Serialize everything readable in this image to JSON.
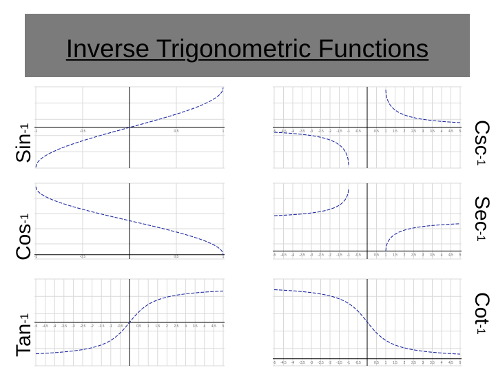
{
  "title": "Inverse Trigonometric Functions",
  "labels": {
    "sin": {
      "base": "Sin",
      "sup": "-1"
    },
    "cos": {
      "base": "Cos",
      "sup": "-1"
    },
    "tan": {
      "base": "Tan",
      "sup": "-1"
    },
    "csc": {
      "base": "Csc",
      "sup": "-1"
    },
    "sec": {
      "base": "Sec",
      "sup": "-1"
    },
    "cot": {
      "base": "Cot",
      "sup": "-1"
    }
  },
  "colors": {
    "title_bar": "#7b7b7b",
    "curve": "#1f2aa0",
    "grid": "#d9d9d9",
    "axis": "#000000",
    "tick": "#666666"
  },
  "chart_data": [
    {
      "id": "sin",
      "type": "line",
      "function": "arcsin",
      "xlim": [
        -1,
        1
      ],
      "ylim": [
        -1.6,
        1.6
      ],
      "tick_labels": [
        "-1",
        "-0.5",
        "0",
        "0.5",
        "1"
      ]
    },
    {
      "id": "cos",
      "type": "line",
      "function": "arccos",
      "xlim": [
        -1,
        1
      ],
      "ylim": [
        -0.2,
        3.3
      ],
      "tick_labels": [
        "-1",
        "-0.5",
        "0",
        "0.5",
        "1"
      ]
    },
    {
      "id": "tan",
      "type": "line",
      "function": "arctan",
      "xlim": [
        -5,
        5
      ],
      "ylim": [
        -1.9,
        1.9
      ],
      "tick_labels": [
        "-5",
        "-4.5",
        "-4",
        "-3.5",
        "-3",
        "-2.5",
        "-2",
        "-1.5",
        "-1",
        "-0.5",
        "0",
        "0.5",
        "1",
        "1.5",
        "2",
        "2.5",
        "3",
        "3.5",
        "4",
        "4.5",
        "5"
      ]
    },
    {
      "id": "csc",
      "type": "line",
      "function": "arccsc",
      "xlim": [
        -5,
        5
      ],
      "ylim": [
        -1.7,
        1.7
      ],
      "tick_labels": [
        "-5",
        "-4.5",
        "-4",
        "-3.5",
        "-3",
        "-2.5",
        "-2",
        "-1.5",
        "-1",
        "-0.5",
        "0",
        "0.5",
        "1",
        "1.5",
        "2",
        "2.5",
        "3",
        "3.5",
        "4",
        "4.5",
        "5"
      ]
    },
    {
      "id": "sec",
      "type": "line",
      "function": "arcsec",
      "xlim": [
        -5,
        5
      ],
      "ylim": [
        -0.4,
        3.4
      ],
      "tick_labels": [
        "-5",
        "-4.5",
        "-4",
        "-3.5",
        "-3",
        "-2.5",
        "-2",
        "-1.5",
        "-1",
        "-0.5",
        "0",
        "0.5",
        "1",
        "1.5",
        "2",
        "2.5",
        "3",
        "3.5",
        "4",
        "4.5",
        "5"
      ]
    },
    {
      "id": "cot",
      "type": "line",
      "function": "arccot",
      "xlim": [
        -5,
        5
      ],
      "ylim": [
        -0.3,
        3.4
      ],
      "tick_labels": [
        "-5",
        "-4.5",
        "-4",
        "-3.5",
        "-3",
        "-2.5",
        "-2",
        "-1.5",
        "-1",
        "-0.5",
        "0",
        "0.5",
        "1",
        "1.5",
        "2",
        "2.5",
        "3",
        "3.5",
        "4",
        "4.5",
        "5"
      ]
    }
  ]
}
